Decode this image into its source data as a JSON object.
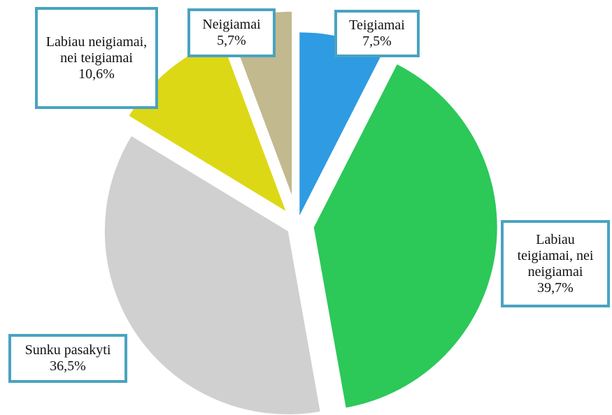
{
  "chart_data": {
    "type": "pie",
    "categories": [
      "Teigiamai",
      "Labiau teigiamai, nei neigiamai",
      "Sunku pasakyti",
      "Labiau neigiamai, nei teigiamai",
      "Neigiamai"
    ],
    "values": [
      7.5,
      39.7,
      36.5,
      10.6,
      5.7
    ],
    "value_labels": [
      "7,5%",
      "39,7%",
      "36,5%",
      "10,6%",
      "5,7%"
    ],
    "colors": [
      "#2e9be3",
      "#2cc858",
      "#d0d0d0",
      "#ddd816",
      "#c2b98e"
    ]
  }
}
